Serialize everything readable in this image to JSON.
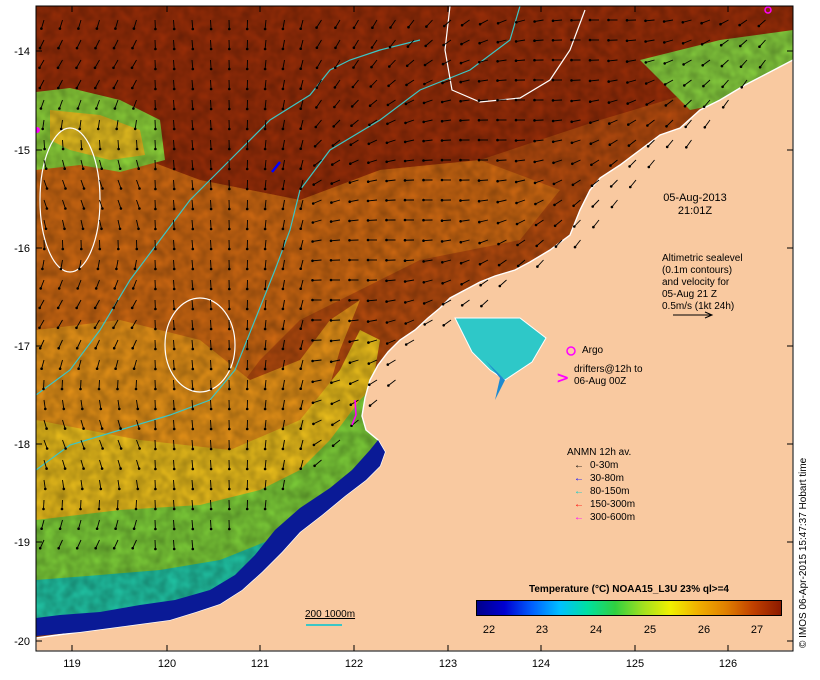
{
  "map": {
    "colors": {
      "land": "#f9c9a0",
      "coast": "#ffffff",
      "contour_200_1000m": "#3cc6c6",
      "sealevel_contour": "#ffffff",
      "argo": "#ff00ff",
      "frame": "#000000"
    },
    "y_ticks": [
      "-14",
      "-15",
      "-16",
      "-17",
      "-18",
      "-19",
      "-20"
    ],
    "x_ticks": [
      "119",
      "120",
      "121",
      "122",
      "123",
      "124",
      "125",
      "126"
    ],
    "date": "05-Aug-2013",
    "time": "21:01Z",
    "altimetry_note": [
      "Altimetric sealevel",
      "(0.1m contours)",
      "and velocity for",
      "05-Aug 21 Z",
      "0.5m/s (1kt 24h)"
    ],
    "argo_label": "Argo",
    "drifters_note": [
      "drifters@12h to",
      "06-Aug 00Z"
    ],
    "anmn": {
      "title": "ANMN 12h av.",
      "items": [
        {
          "label": "0-30m",
          "color": "#000000"
        },
        {
          "label": "30-80m",
          "color": "#0000ff"
        },
        {
          "label": "80-150m",
          "color": "#00cccc"
        },
        {
          "label": "150-300m",
          "color": "#ff0000"
        },
        {
          "label": "300-600m",
          "color": "#ff00ff"
        }
      ]
    },
    "colorbar": {
      "title": "Temperature (°C) NOAA15_L3U 23% ql>=4",
      "labels": [
        "22",
        "23",
        "24",
        "25",
        "26",
        "27"
      ],
      "colors": [
        "#00008b",
        "#0000d0",
        "#0060ff",
        "#00c0ff",
        "#00e0a0",
        "#30d040",
        "#a0e020",
        "#f0f000",
        "#f0b000",
        "#e08000",
        "#c04000",
        "#8b1a00"
      ]
    },
    "bathy_label": "200  1000m",
    "credit": "© IMOS 06-Apr-2015 15:47:37 Hobart time"
  }
}
